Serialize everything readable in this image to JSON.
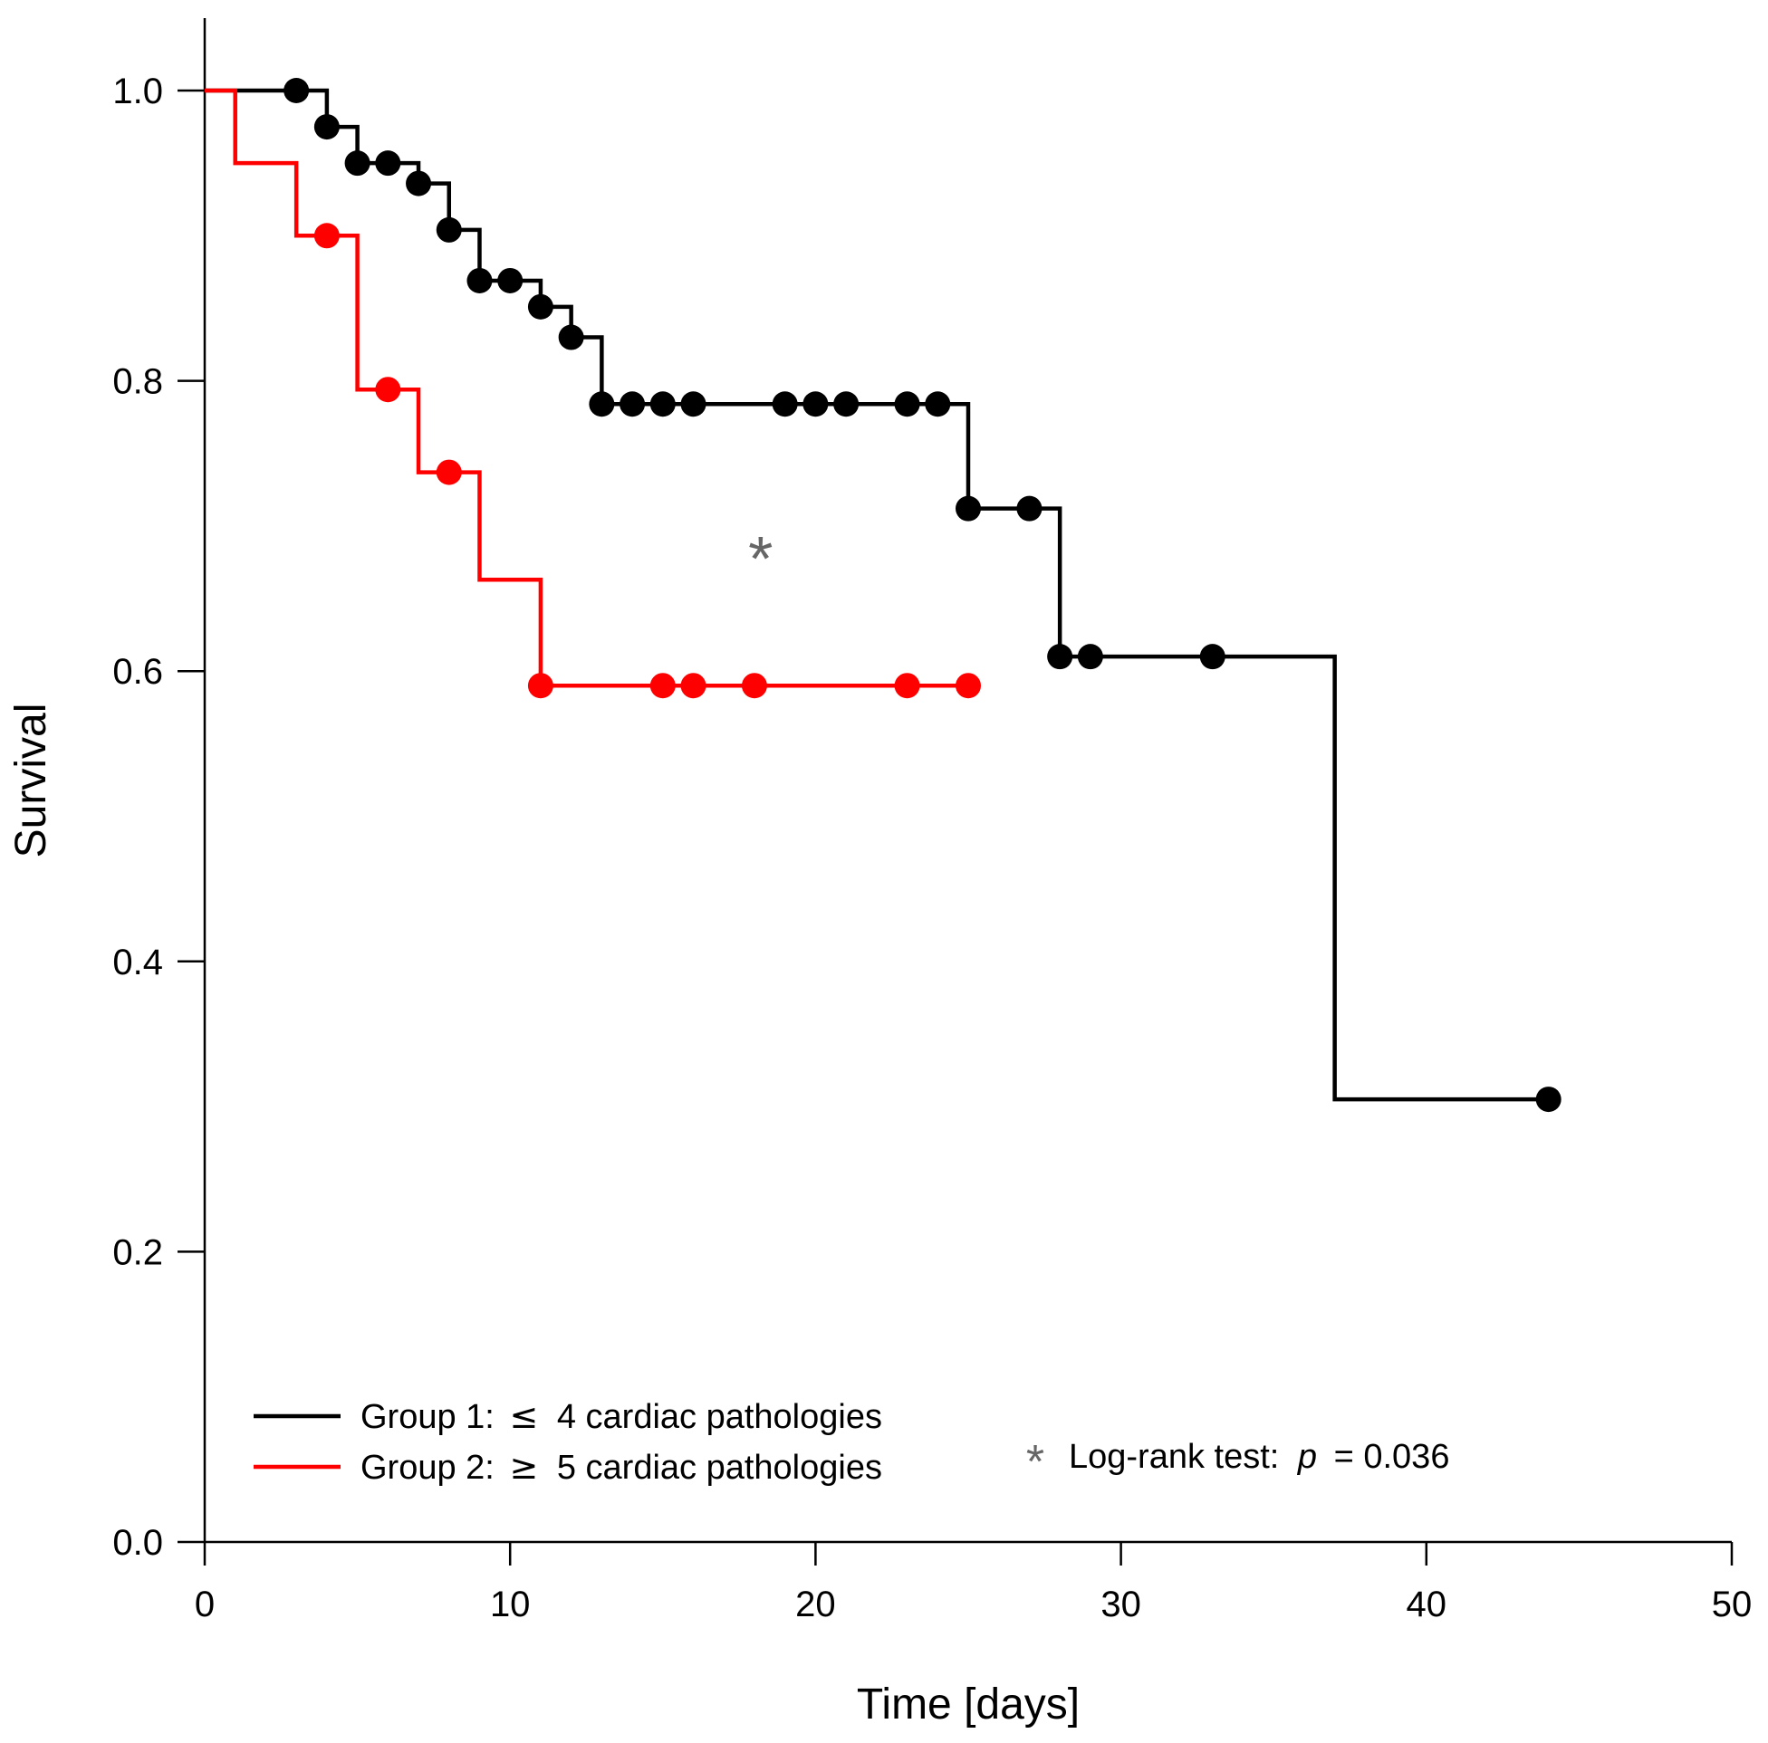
{
  "chart_data": {
    "type": "line",
    "subtype": "kaplan-meier",
    "title": "",
    "xlabel": "Time [days]",
    "ylabel": "Survival",
    "xlim": [
      0,
      50
    ],
    "ylim": [
      0,
      1.0
    ],
    "x_ticks": [
      0,
      10,
      20,
      30,
      40,
      50
    ],
    "x_tick_labels": [
      "0",
      "10",
      "20",
      "30",
      "40",
      "50"
    ],
    "y_ticks": [
      0,
      0.2,
      0.4,
      0.6,
      0.8,
      1.0
    ],
    "y_tick_labels": [
      "0.0",
      "0.2",
      "0.4",
      "0.6",
      "0.8",
      "1.0"
    ],
    "grid": false,
    "legend_position": "bottom-left",
    "series": [
      {
        "name": "Group 1",
        "legend_prefix": "Group 1:",
        "legend_symbol": "≤",
        "legend_suffix": "4 cardiac pathologies",
        "color": "#000000",
        "steps": [
          {
            "x": 0,
            "y": 1.0
          },
          {
            "x": 4,
            "y": 0.975
          },
          {
            "x": 5,
            "y": 0.95
          },
          {
            "x": 7,
            "y": 0.936
          },
          {
            "x": 8,
            "y": 0.904
          },
          {
            "x": 9,
            "y": 0.869
          },
          {
            "x": 11,
            "y": 0.851
          },
          {
            "x": 12,
            "y": 0.83
          },
          {
            "x": 13,
            "y": 0.784
          },
          {
            "x": 25,
            "y": 0.712
          },
          {
            "x": 28,
            "y": 0.61
          },
          {
            "x": 37,
            "y": 0.305
          }
        ],
        "end_x": 44,
        "censored": [
          {
            "x": 3,
            "y": 1.0
          },
          {
            "x": 4,
            "y": 0.975
          },
          {
            "x": 5,
            "y": 0.95
          },
          {
            "x": 6,
            "y": 0.95
          },
          {
            "x": 7,
            "y": 0.936
          },
          {
            "x": 8,
            "y": 0.904
          },
          {
            "x": 9,
            "y": 0.869
          },
          {
            "x": 10,
            "y": 0.869
          },
          {
            "x": 11,
            "y": 0.851
          },
          {
            "x": 12,
            "y": 0.83
          },
          {
            "x": 13,
            "y": 0.784
          },
          {
            "x": 14,
            "y": 0.784
          },
          {
            "x": 15,
            "y": 0.784
          },
          {
            "x": 16,
            "y": 0.784
          },
          {
            "x": 19,
            "y": 0.784
          },
          {
            "x": 20,
            "y": 0.784
          },
          {
            "x": 21,
            "y": 0.784
          },
          {
            "x": 23,
            "y": 0.784
          },
          {
            "x": 24,
            "y": 0.784
          },
          {
            "x": 25,
            "y": 0.712
          },
          {
            "x": 27,
            "y": 0.712
          },
          {
            "x": 28,
            "y": 0.61
          },
          {
            "x": 29,
            "y": 0.61
          },
          {
            "x": 33,
            "y": 0.61
          },
          {
            "x": 44,
            "y": 0.305
          }
        ]
      },
      {
        "name": "Group 2",
        "legend_prefix": "Group 2:",
        "legend_symbol": "≥",
        "legend_suffix": "5 cardiac pathologies",
        "color": "#ff0000",
        "steps": [
          {
            "x": 0,
            "y": 1.0
          },
          {
            "x": 1,
            "y": 0.95
          },
          {
            "x": 3,
            "y": 0.9
          },
          {
            "x": 5,
            "y": 0.794
          },
          {
            "x": 7,
            "y": 0.737
          },
          {
            "x": 9,
            "y": 0.663
          },
          {
            "x": 11,
            "y": 0.59
          }
        ],
        "end_x": 25,
        "censored": [
          {
            "x": 4,
            "y": 0.9
          },
          {
            "x": 6,
            "y": 0.794
          },
          {
            "x": 8,
            "y": 0.737
          },
          {
            "x": 11,
            "y": 0.59
          },
          {
            "x": 15,
            "y": 0.59
          },
          {
            "x": 16,
            "y": 0.59
          },
          {
            "x": 18,
            "y": 0.59
          },
          {
            "x": 23,
            "y": 0.59
          },
          {
            "x": 25,
            "y": 0.59
          }
        ]
      }
    ],
    "annotations": [
      {
        "text": "*",
        "x": 18.2,
        "y": 0.685,
        "color": "#666666"
      }
    ],
    "test_note": {
      "star": "*",
      "star_color": "#666666",
      "label": "Log-rank test:",
      "p_symbol": "p",
      "p_value": "= 0.036"
    }
  }
}
